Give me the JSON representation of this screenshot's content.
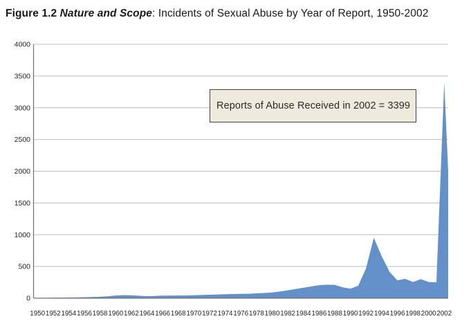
{
  "title": {
    "prefix": "Figure 1.2",
    "italic": " Nature and Scope",
    "rest": ": Incidents of Sexual Abuse by Year of Report, 1950-2002"
  },
  "annotation": {
    "text": "Reports of Abuse Received in 2002 = 3399",
    "value_year": "2002",
    "value": 3399,
    "bg_color": "#efeade",
    "border_color": "#45443c"
  },
  "chart_data": {
    "type": "area",
    "title": "Incidents of Sexual Abuse by Year of Report, 1950-2002",
    "xlabel": "",
    "ylabel": "",
    "x": [
      1950,
      1951,
      1952,
      1953,
      1954,
      1955,
      1956,
      1957,
      1958,
      1959,
      1960,
      1961,
      1962,
      1963,
      1964,
      1965,
      1966,
      1967,
      1968,
      1969,
      1970,
      1971,
      1972,
      1973,
      1974,
      1975,
      1976,
      1977,
      1978,
      1979,
      1980,
      1981,
      1982,
      1983,
      1984,
      1985,
      1986,
      1987,
      1988,
      1989,
      1990,
      1991,
      1992,
      1993,
      1994,
      1995,
      1996,
      1997,
      1998,
      1999,
      2000,
      2001,
      2002
    ],
    "values": [
      5,
      5,
      8,
      8,
      10,
      12,
      15,
      18,
      22,
      30,
      42,
      48,
      45,
      38,
      32,
      35,
      40,
      40,
      42,
      43,
      46,
      50,
      55,
      58,
      62,
      65,
      68,
      70,
      76,
      82,
      90,
      105,
      124,
      145,
      165,
      185,
      205,
      212,
      210,
      172,
      150,
      195,
      470,
      950,
      660,
      415,
      280,
      305,
      255,
      300,
      255,
      250,
      3399
    ],
    "x_tick_labels": [
      "1950",
      "1952",
      "1954",
      "1956",
      "1958",
      "1960",
      "1962",
      "1964",
      "1966",
      "1968",
      "1970",
      "1972",
      "1974",
      "1976",
      "1978",
      "1980",
      "1982",
      "1984",
      "1986",
      "1988",
      "1990",
      "1992",
      "1994",
      "1996",
      "1998",
      "2000",
      "2002"
    ],
    "y_ticks": [
      0,
      500,
      1000,
      1500,
      2000,
      2500,
      3000,
      3500,
      4000
    ],
    "ylim": [
      0,
      4000
    ],
    "grid": true,
    "legend": "none",
    "area_color": "#6390c9",
    "grid_color": "#bcbcbc",
    "axis_color": "#6f6f6f",
    "tick_label_color": "#242424"
  }
}
